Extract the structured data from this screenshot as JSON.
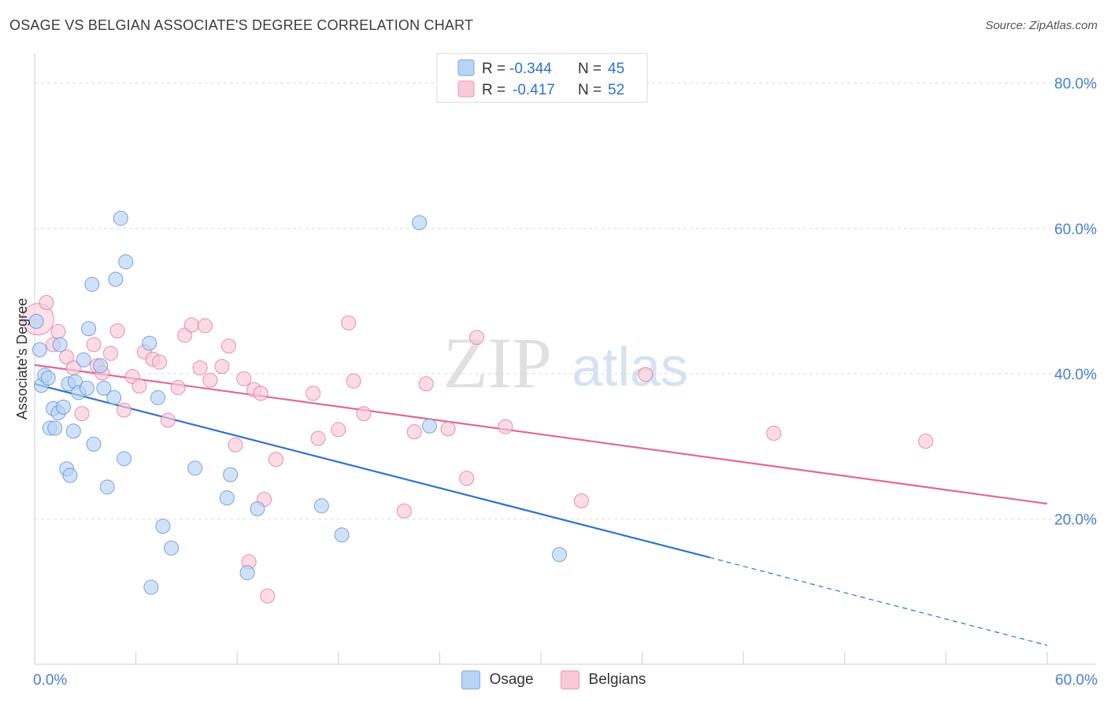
{
  "title": "OSAGE VS BELGIAN ASSOCIATE'S DEGREE CORRELATION CHART",
  "source": "Source: ZipAtlas.com",
  "watermark": {
    "zip": "ZIP",
    "atlas": "atlas"
  },
  "colors": {
    "osage": "#5b8fd8",
    "osage_fill": "#b9d3f5",
    "osage_line": "#2f73cc",
    "belgians": "#e8739a",
    "belgians_fill": "#f9c9d7",
    "belgians_line": "#e06a93",
    "axis_label": "#4a7fcf"
  },
  "legend": {
    "rows": [
      {
        "r_label": "R = ",
        "r_value": "-0.344",
        "n_label": "N = ",
        "n_value": "45"
      },
      {
        "r_label": "R = ",
        "r_value": "-0.417",
        "n_label": "N = ",
        "n_value": "52"
      }
    ],
    "bottom": [
      "Osage",
      "Belgians"
    ]
  },
  "chart_data": {
    "type": "scatter",
    "xlabel": "",
    "ylabel": "Associate's Degree",
    "xlim": [
      0,
      60
    ],
    "ylim": [
      0,
      83
    ],
    "x_tick_labels": [
      {
        "value": 0,
        "label": "0.0%"
      },
      {
        "value": 60,
        "label": "60.0%"
      }
    ],
    "y_tick_labels": [
      {
        "value": 20,
        "label": "20.0%"
      },
      {
        "value": 40,
        "label": "40.0%"
      },
      {
        "value": 60,
        "label": "60.0%"
      },
      {
        "value": 80,
        "label": "80.0%"
      }
    ],
    "grid": true,
    "series": [
      {
        "name": "Osage",
        "points": [
          [
            0.1,
            47.2
          ],
          [
            0.3,
            43.3
          ],
          [
            0.4,
            38.4
          ],
          [
            0.6,
            39.8
          ],
          [
            0.8,
            39.4
          ],
          [
            0.9,
            32.5
          ],
          [
            1.1,
            35.2
          ],
          [
            1.2,
            32.5
          ],
          [
            1.4,
            34.6
          ],
          [
            1.5,
            44.0
          ],
          [
            1.7,
            35.4
          ],
          [
            1.9,
            26.9
          ],
          [
            2.0,
            38.6
          ],
          [
            2.1,
            26.0
          ],
          [
            2.3,
            32.1
          ],
          [
            2.4,
            38.9
          ],
          [
            2.6,
            37.4
          ],
          [
            2.9,
            41.9
          ],
          [
            3.1,
            38.0
          ],
          [
            3.2,
            46.2
          ],
          [
            3.4,
            52.3
          ],
          [
            3.5,
            30.3
          ],
          [
            3.9,
            41.1
          ],
          [
            4.1,
            38.0
          ],
          [
            4.3,
            24.4
          ],
          [
            4.7,
            36.7
          ],
          [
            4.8,
            53.0
          ],
          [
            5.1,
            61.4
          ],
          [
            5.3,
            28.3
          ],
          [
            5.4,
            55.4
          ],
          [
            6.8,
            44.2
          ],
          [
            6.9,
            10.6
          ],
          [
            7.3,
            36.7
          ],
          [
            7.6,
            19.0
          ],
          [
            8.1,
            16.0
          ],
          [
            9.5,
            27.0
          ],
          [
            11.4,
            22.9
          ],
          [
            11.6,
            26.1
          ],
          [
            12.6,
            12.6
          ],
          [
            13.2,
            21.4
          ],
          [
            17.0,
            21.8
          ],
          [
            18.2,
            17.8
          ],
          [
            22.8,
            60.8
          ],
          [
            23.4,
            32.8
          ],
          [
            31.1,
            15.1
          ]
        ],
        "trend": {
          "x": [
            0,
            40
          ],
          "y": [
            38.6,
            14.7
          ],
          "extended_to": [
            60,
            2.6
          ]
        }
      },
      {
        "name": "Belgians",
        "points": [
          [
            0.2,
            47.5
          ],
          [
            0.7,
            49.8
          ],
          [
            1.1,
            44.0
          ],
          [
            1.4,
            45.8
          ],
          [
            1.9,
            42.3
          ],
          [
            2.3,
            40.8
          ],
          [
            2.8,
            34.5
          ],
          [
            3.5,
            44.0
          ],
          [
            3.7,
            41.1
          ],
          [
            4.0,
            40.1
          ],
          [
            4.5,
            42.8
          ],
          [
            4.9,
            45.9
          ],
          [
            5.3,
            35.0
          ],
          [
            5.8,
            39.6
          ],
          [
            6.2,
            38.3
          ],
          [
            6.5,
            43.0
          ],
          [
            7.0,
            42.0
          ],
          [
            7.4,
            41.6
          ],
          [
            7.9,
            33.6
          ],
          [
            8.5,
            38.1
          ],
          [
            8.9,
            45.3
          ],
          [
            9.3,
            46.7
          ],
          [
            9.8,
            40.8
          ],
          [
            10.1,
            46.6
          ],
          [
            10.4,
            39.1
          ],
          [
            11.1,
            41.0
          ],
          [
            11.5,
            43.8
          ],
          [
            11.9,
            30.2
          ],
          [
            12.4,
            39.3
          ],
          [
            12.7,
            14.1
          ],
          [
            13.0,
            37.8
          ],
          [
            13.4,
            37.3
          ],
          [
            13.6,
            22.7
          ],
          [
            13.8,
            9.4
          ],
          [
            14.3,
            28.2
          ],
          [
            16.5,
            37.3
          ],
          [
            16.8,
            31.1
          ],
          [
            18.0,
            32.3
          ],
          [
            18.6,
            47.0
          ],
          [
            18.9,
            39.0
          ],
          [
            19.5,
            34.5
          ],
          [
            21.9,
            21.1
          ],
          [
            22.5,
            32.0
          ],
          [
            23.2,
            38.6
          ],
          [
            24.5,
            32.4
          ],
          [
            25.6,
            25.6
          ],
          [
            26.2,
            45.0
          ],
          [
            27.9,
            32.7
          ],
          [
            32.4,
            22.5
          ],
          [
            36.2,
            39.9
          ],
          [
            43.8,
            31.8
          ],
          [
            52.8,
            30.7
          ]
        ],
        "trend": {
          "x": [
            0,
            60
          ],
          "y": [
            41.2,
            22.1
          ]
        }
      }
    ]
  }
}
